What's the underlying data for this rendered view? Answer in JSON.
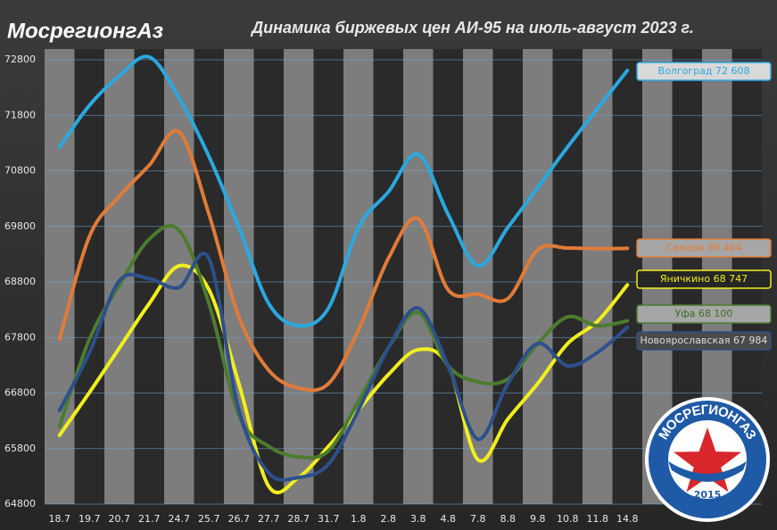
{
  "chart_data": {
    "type": "line",
    "title": "Динамика  биржевых цен АИ-95 на июль-август 2023 г.",
    "categories": [
      "18.7",
      "19.7",
      "20.7",
      "21.7",
      "24.7",
      "25.7",
      "26.7",
      "27.7",
      "28.7",
      "31.7",
      "1.8",
      "2.8",
      "3.8",
      "4.8",
      "7.8",
      "8.8",
      "9.8",
      "10.8",
      "11.8",
      "14.8",
      null,
      null,
      null,
      null
    ],
    "ylim": [
      64800,
      72800
    ],
    "yticks": [
      64800,
      65800,
      66800,
      67800,
      68800,
      69800,
      70800,
      71800,
      72800
    ],
    "grid": true,
    "legend": "right",
    "series": [
      {
        "name": "Волгоград 72 608",
        "color": "#2aa8e0",
        "values": [
          71226,
          71980,
          72510,
          72850,
          72110,
          71060,
          69780,
          68410,
          68010,
          68330,
          69780,
          70420,
          71100,
          70020,
          69090,
          69780,
          70500,
          71230,
          71920,
          72608,
          null,
          null,
          null,
          null
        ]
      },
      {
        "name": "Самара 69 404",
        "color": "#e07b39",
        "values": [
          67770,
          69620,
          70340,
          70900,
          71500,
          70020,
          68170,
          67210,
          66890,
          66970,
          67930,
          69220,
          69940,
          68660,
          68580,
          68500,
          69380,
          69410,
          69400,
          69404,
          null,
          null,
          null,
          null
        ]
      },
      {
        "name": "Яничкино  68 747",
        "color": "#f2ee1e",
        "values": [
          66040,
          66810,
          67610,
          68410,
          69090,
          68660,
          66970,
          65120,
          65280,
          65840,
          66490,
          67130,
          67580,
          67290,
          65600,
          66330,
          66970,
          67690,
          68090,
          68747,
          null,
          null,
          null,
          null
        ]
      },
      {
        "name": "Уфа 68 100",
        "color": "#4c7c2e",
        "values": [
          66200,
          67770,
          68740,
          69570,
          69730,
          68410,
          66400,
          65840,
          65650,
          65760,
          66650,
          67610,
          68250,
          67290,
          67000,
          67050,
          67690,
          68170,
          68010,
          68100,
          null,
          null,
          null,
          null
        ]
      },
      {
        "name": "Новоярославская 67 984",
        "color": "#2d508c",
        "values": [
          66490,
          67530,
          68820,
          68860,
          68700,
          69220,
          66490,
          65360,
          65280,
          65520,
          66490,
          67610,
          68330,
          67290,
          65970,
          66970,
          67690,
          67290,
          67530,
          67984,
          null,
          null,
          null,
          null
        ]
      }
    ]
  },
  "logo": {
    "text": "МосрегионгАз"
  },
  "badge": {
    "text": "МОСРЕГИОНГАЗ",
    "year": "2015"
  }
}
